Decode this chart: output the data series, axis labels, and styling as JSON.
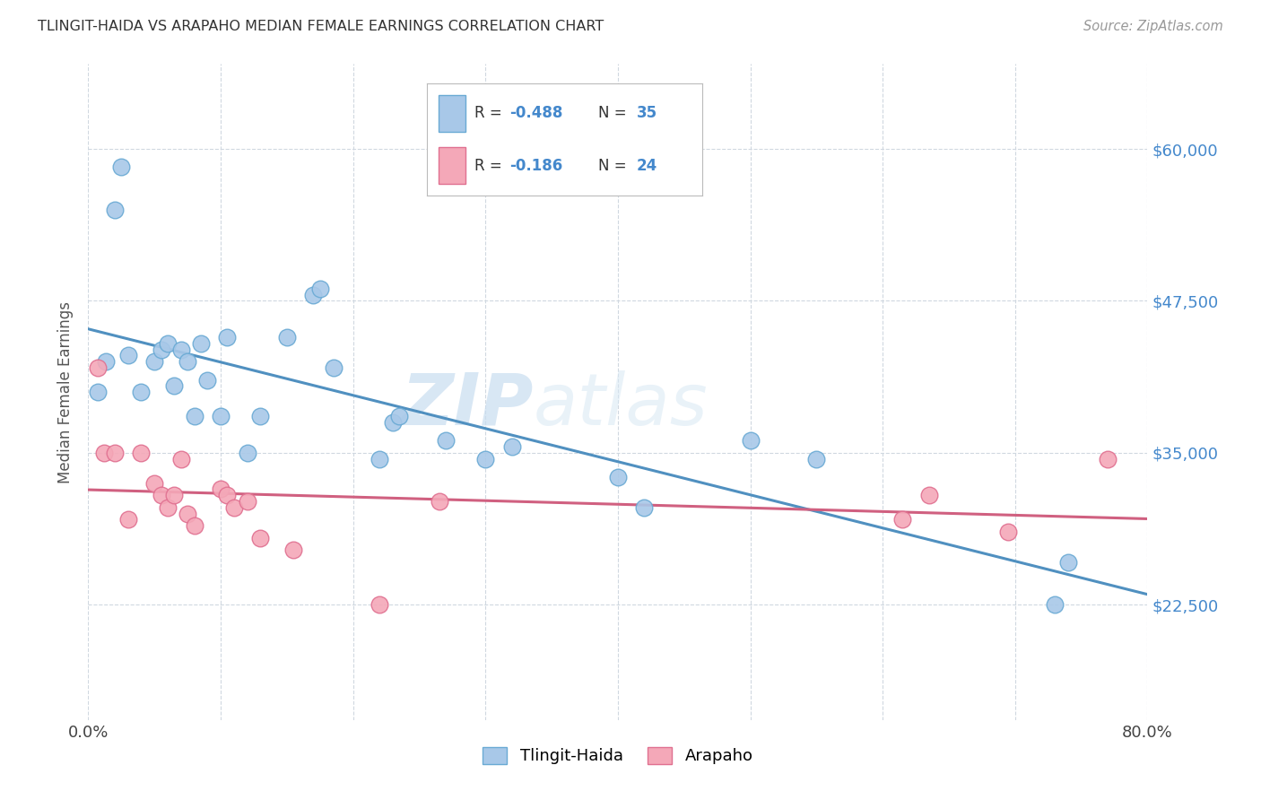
{
  "title": "TLINGIT-HAIDA VS ARAPAHO MEDIAN FEMALE EARNINGS CORRELATION CHART",
  "source": "Source: ZipAtlas.com",
  "ylabel": "Median Female Earnings",
  "watermark_zip": "ZIP",
  "watermark_atlas": "atlas",
  "xmin": 0.0,
  "xmax": 0.8,
  "ymin": 13000,
  "ymax": 67000,
  "yticks": [
    22500,
    35000,
    47500,
    60000
  ],
  "ytick_labels": [
    "$22,500",
    "$35,000",
    "$47,500",
    "$60,000"
  ],
  "xticks": [
    0.0,
    0.1,
    0.2,
    0.3,
    0.4,
    0.5,
    0.6,
    0.7,
    0.8
  ],
  "blue_scatter_color": "#a8c8e8",
  "blue_edge_color": "#6aaad4",
  "pink_scatter_color": "#f4a8b8",
  "pink_edge_color": "#e07090",
  "blue_line_color": "#5090c0",
  "pink_line_color": "#d06080",
  "tlingit_R": -0.488,
  "tlingit_N": 35,
  "arapaho_R": -0.186,
  "arapaho_N": 24,
  "tlingit_x": [
    0.007,
    0.013,
    0.02,
    0.025,
    0.03,
    0.04,
    0.05,
    0.055,
    0.06,
    0.065,
    0.07,
    0.075,
    0.08,
    0.085,
    0.09,
    0.1,
    0.105,
    0.12,
    0.13,
    0.15,
    0.17,
    0.175,
    0.185,
    0.22,
    0.23,
    0.235,
    0.27,
    0.3,
    0.32,
    0.4,
    0.42,
    0.5,
    0.55,
    0.73,
    0.74
  ],
  "tlingit_y": [
    40000,
    42500,
    55000,
    58500,
    43000,
    40000,
    42500,
    43500,
    44000,
    40500,
    43500,
    42500,
    38000,
    44000,
    41000,
    38000,
    44500,
    35000,
    38000,
    44500,
    48000,
    48500,
    42000,
    34500,
    37500,
    38000,
    36000,
    34500,
    35500,
    33000,
    30500,
    36000,
    34500,
    22500,
    26000
  ],
  "arapaho_x": [
    0.007,
    0.012,
    0.02,
    0.03,
    0.04,
    0.05,
    0.055,
    0.06,
    0.065,
    0.07,
    0.075,
    0.08,
    0.1,
    0.105,
    0.11,
    0.12,
    0.13,
    0.155,
    0.22,
    0.265,
    0.615,
    0.635,
    0.695,
    0.77
  ],
  "arapaho_y": [
    42000,
    35000,
    35000,
    29500,
    35000,
    32500,
    31500,
    30500,
    31500,
    34500,
    30000,
    29000,
    32000,
    31500,
    30500,
    31000,
    28000,
    27000,
    22500,
    31000,
    29500,
    31500,
    28500,
    34500
  ],
  "background_color": "#ffffff",
  "grid_color": "#d0d8e0",
  "title_color": "#333333",
  "source_color": "#999999",
  "axis_label_color": "#4488cc",
  "legend_text_color": "#333333",
  "legend_value_color": "#4488cc"
}
